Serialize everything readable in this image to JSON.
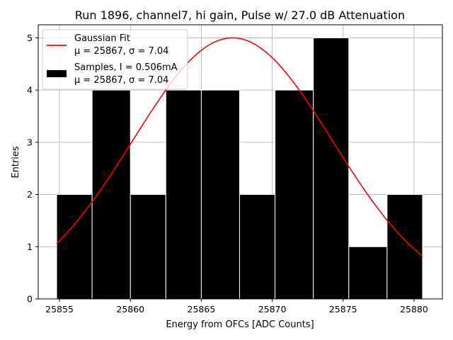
{
  "chart_data": {
    "type": "bar",
    "title": "Run 1896, channel7, hi gain, Pulse w/ 27.0 dB Attenuation",
    "xlabel": "Energy from OFCs [ADC Counts]",
    "ylabel": "Entries",
    "xlim": [
      25853.5,
      25882.0
    ],
    "ylim": [
      0,
      5.25
    ],
    "xticks": [
      25855,
      25860,
      25865,
      25870,
      25875,
      25880
    ],
    "yticks": [
      0,
      1,
      2,
      3,
      4,
      5
    ],
    "grid": true,
    "legend_position": "top-left",
    "histogram": {
      "name": "Samples, I = 0.506mA",
      "stats": "μ = 25867, σ = 7.04",
      "color": "#000000",
      "bins": [
        {
          "start": 25854.8,
          "end": 25857.3,
          "count": 2
        },
        {
          "start": 25857.3,
          "end": 25860.0,
          "count": 4
        },
        {
          "start": 25860.0,
          "end": 25862.5,
          "count": 2
        },
        {
          "start": 25862.5,
          "end": 25865.0,
          "count": 4
        },
        {
          "start": 25865.0,
          "end": 25867.7,
          "count": 4
        },
        {
          "start": 25867.7,
          "end": 25870.2,
          "count": 2
        },
        {
          "start": 25870.2,
          "end": 25872.9,
          "count": 4
        },
        {
          "start": 25872.9,
          "end": 25875.4,
          "count": 5
        },
        {
          "start": 25875.4,
          "end": 25878.1,
          "count": 1
        },
        {
          "start": 25878.1,
          "end": 25880.6,
          "count": 2
        }
      ]
    },
    "fit": {
      "name": "Gaussian Fit",
      "stats": "μ = 25867, σ = 7.04",
      "color": "#ff0000",
      "mu": 25867.2,
      "sigma": 7.04,
      "amplitude": 5.0,
      "x_range": [
        25854.8,
        25880.6
      ]
    }
  }
}
